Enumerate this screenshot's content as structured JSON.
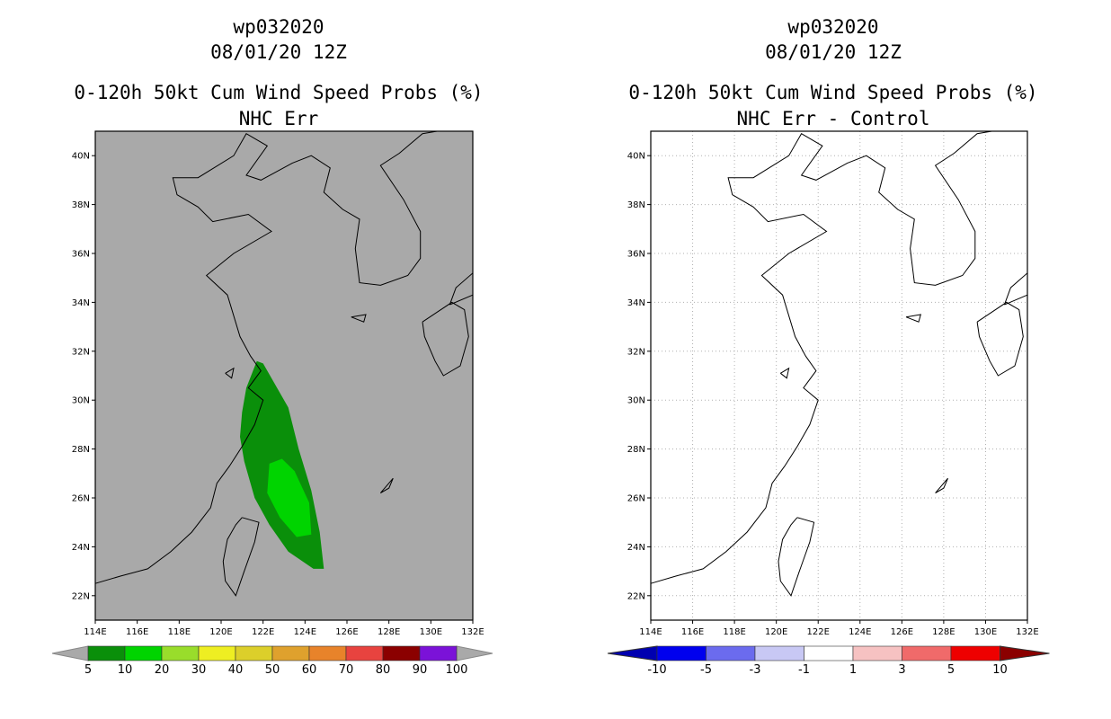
{
  "colors": {
    "panel1_background": "#a9a9a9",
    "green_dark": "#0a8f0a",
    "green_light": "#00d400"
  },
  "panels": [
    {
      "storm_id": "wp032020",
      "datetime": "08/01/20 12Z",
      "title": "0-120h 50kt Cum Wind Speed Probs (%)",
      "subtitle": "NHC Err"
    },
    {
      "storm_id": "wp032020",
      "datetime": "08/01/20 12Z",
      "title": "0-120h 50kt Cum Wind Speed Probs (%)",
      "subtitle": "NHC Err - Control"
    }
  ],
  "chart_data": [
    {
      "type": "heatmap",
      "title": "0-120h 50kt Cum Wind Speed Probs (%)",
      "subtitle": "NHC Err",
      "xlim": [
        114,
        132
      ],
      "ylim": [
        21,
        41
      ],
      "x_ticks": [
        "114E",
        "116E",
        "118E",
        "120E",
        "122E",
        "124E",
        "126E",
        "128E",
        "130E",
        "132E"
      ],
      "y_ticks": [
        "22N",
        "24N",
        "26N",
        "28N",
        "30N",
        "32N",
        "34N",
        "36N",
        "38N",
        "40N"
      ],
      "legend": {
        "labels": [
          "5",
          "10",
          "20",
          "30",
          "40",
          "50",
          "60",
          "70",
          "80",
          "90",
          "100"
        ],
        "colors": [
          "#0a8f0a",
          "#00d400",
          "#99dd2b",
          "#eeee22",
          "#dccf2a",
          "#dfa12d",
          "#e8832a",
          "#e8433f",
          "#8b0000",
          "#7b12d8"
        ]
      },
      "contours": [
        {
          "level": "5-10%",
          "color": "#0a8f0a",
          "polygon": [
            [
              121.7,
              31.6
            ],
            [
              121.2,
              30.5
            ],
            [
              121.0,
              29.5
            ],
            [
              120.9,
              28.5
            ],
            [
              121.1,
              27.5
            ],
            [
              121.6,
              26.0
            ],
            [
              122.3,
              24.9
            ],
            [
              123.2,
              23.8
            ],
            [
              124.4,
              23.1
            ],
            [
              124.9,
              23.1
            ],
            [
              124.7,
              24.6
            ],
            [
              124.3,
              26.3
            ],
            [
              123.7,
              28.0
            ],
            [
              123.2,
              29.7
            ],
            [
              122.6,
              30.6
            ],
            [
              122.0,
              31.5
            ]
          ]
        },
        {
          "level": "10-20%",
          "color": "#00d400",
          "polygon": [
            [
              122.3,
              27.4
            ],
            [
              122.2,
              26.2
            ],
            [
              122.8,
              25.2
            ],
            [
              123.6,
              24.4
            ],
            [
              124.3,
              24.5
            ],
            [
              124.2,
              25.8
            ],
            [
              123.5,
              27.1
            ],
            [
              122.9,
              27.6
            ]
          ]
        }
      ]
    },
    {
      "type": "heatmap",
      "title": "0-120h 50kt Cum Wind Speed Probs (%)",
      "subtitle": "NHC Err - Control",
      "xlim": [
        114,
        132
      ],
      "ylim": [
        21,
        41
      ],
      "x_ticks": [
        "114E",
        "116E",
        "118E",
        "120E",
        "122E",
        "124E",
        "126E",
        "128E",
        "130E",
        "132E"
      ],
      "y_ticks": [
        "22N",
        "24N",
        "26N",
        "28N",
        "30N",
        "32N",
        "34N",
        "36N",
        "38N",
        "40N"
      ],
      "grid": true,
      "legend": {
        "labels": [
          "-10",
          "-5",
          "-3",
          "-1",
          "1",
          "3",
          "5",
          "10"
        ],
        "colors": [
          "#0000b0",
          "#0000ee",
          "#6b6bee",
          "#c8c8f4",
          "#ffffff",
          "#f6c2c2",
          "#f06a6a",
          "#ee0000",
          "#8b0000"
        ]
      },
      "contours": []
    }
  ]
}
